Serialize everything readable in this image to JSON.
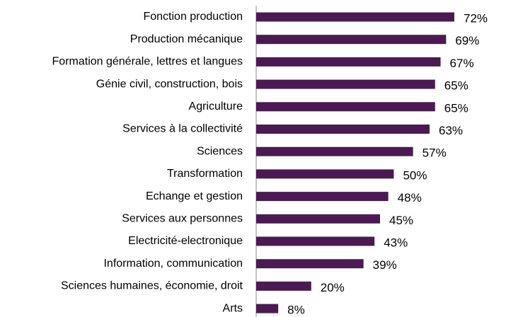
{
  "chart_data": {
    "type": "barh",
    "categories": [
      "Fonction production",
      "Production mécanique",
      "Formation générale, lettres et langues",
      "Génie civil, construction, bois",
      "Agriculture",
      "Services à la collectivité",
      "Sciences",
      "Transformation",
      "Echange et gestion",
      "Services aux personnes",
      "Electricité-electronique",
      "Information, communication",
      "Sciences humaines, économie, droit",
      "Arts"
    ],
    "values": [
      72,
      69,
      67,
      65,
      65,
      63,
      57,
      50,
      48,
      45,
      43,
      39,
      20,
      8
    ],
    "value_labels": [
      "72%",
      "69%",
      "67%",
      "65%",
      "65%",
      "63%",
      "57%",
      "50%",
      "48%",
      "45%",
      "43%",
      "39%",
      "20%",
      "8%"
    ],
    "color": "#4b1a52"
  }
}
